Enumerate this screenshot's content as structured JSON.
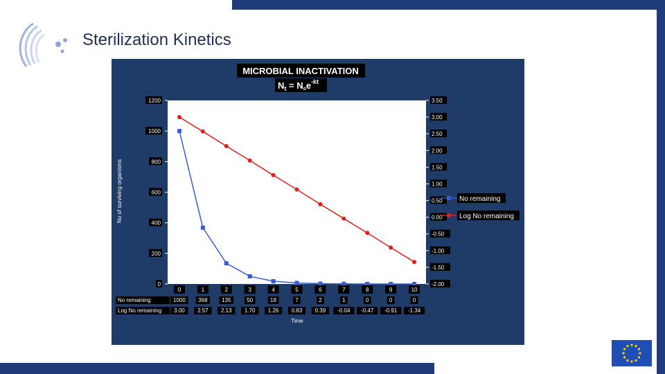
{
  "slide": {
    "title": "Sterilization Kinetics"
  },
  "colors": {
    "panel_bg": "#1f3b68",
    "plot_bg": "#ffffff",
    "series_no_remaining": "#3a5bd6",
    "series_log": "#e01e1e",
    "accent_bar": "#1f3b7a"
  },
  "chart_data": {
    "type": "line",
    "title": "MICROBIAL INACTIVATION",
    "formula": {
      "base": "N",
      "base_sub": "t",
      "eq": " = N",
      "eq_sub": "o",
      "exp_base": "e",
      "exp": "-kt"
    },
    "xlabel": "Time",
    "ylabel": "No of surviving organisms",
    "x": [
      0,
      1,
      2,
      3,
      4,
      5,
      6,
      7,
      8,
      9,
      10
    ],
    "ylim": [
      0,
      1200
    ],
    "yticks": [
      "0",
      "200",
      "400",
      "600",
      "800",
      "1000",
      "1200"
    ],
    "y2lim": [
      -2.0,
      3.5
    ],
    "y2ticks": [
      "-2.00",
      "-1.50",
      "-1.00",
      "-0.50",
      "0.00",
      "0.50",
      "1.00",
      "1.50",
      "2.00",
      "2.50",
      "3.00",
      "3.50"
    ],
    "legend_position": "right",
    "series": [
      {
        "name": "No remaining",
        "axis": "left",
        "values": [
          1000,
          368,
          135,
          50,
          18,
          7,
          2,
          1,
          0,
          0,
          0
        ],
        "labels": [
          "1000",
          "368",
          "135",
          "50",
          "18",
          "7",
          "2",
          "1",
          "0",
          "0",
          "0"
        ]
      },
      {
        "name": "Log No remaining",
        "axis": "right",
        "values": [
          3.0,
          2.57,
          2.13,
          1.7,
          1.26,
          0.83,
          0.39,
          -0.04,
          -0.47,
          -0.91,
          -1.34
        ],
        "labels": [
          "3.00",
          "2.57",
          "2.13",
          "1.70",
          "1.26",
          "0.83",
          "0.39",
          "-0.04",
          "-0.47",
          "-0.91",
          "-1.34"
        ]
      }
    ],
    "table_row_labels": [
      "No remaining",
      "Log No remaining"
    ]
  }
}
